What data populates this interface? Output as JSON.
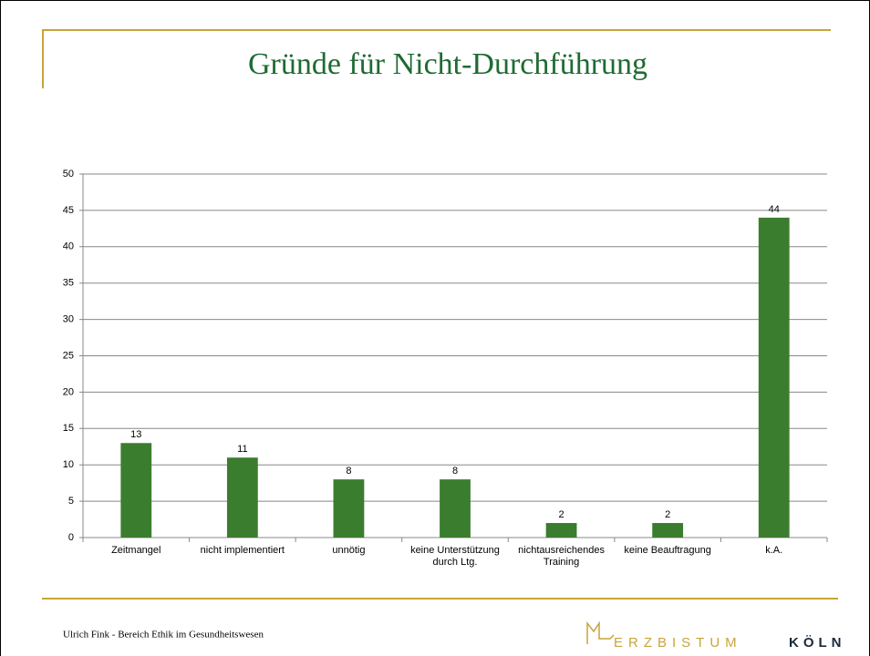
{
  "chart_data": {
    "type": "bar",
    "title": "Gründe für Nicht-Durchführung",
    "categories": [
      "Zeitmangel",
      "nicht implementiert",
      "unnötig",
      "keine Unterstützung durch Ltg.",
      "nichtausreichendes Training",
      "keine Beauftragung",
      "k.A."
    ],
    "values": [
      13,
      11,
      8,
      8,
      2,
      2,
      44
    ],
    "color": "#3b7d2e",
    "ylim": [
      0,
      50
    ],
    "yticks": [
      0,
      5,
      10,
      15,
      20,
      25,
      30,
      35,
      40,
      45,
      50
    ],
    "grid": true
  },
  "footer": {
    "author": "Ulrich Fink -  Bereich Ethik im Gesundheitswesen",
    "logo_light": "ERZBISTUM",
    "logo_bold": "KÖLN"
  }
}
